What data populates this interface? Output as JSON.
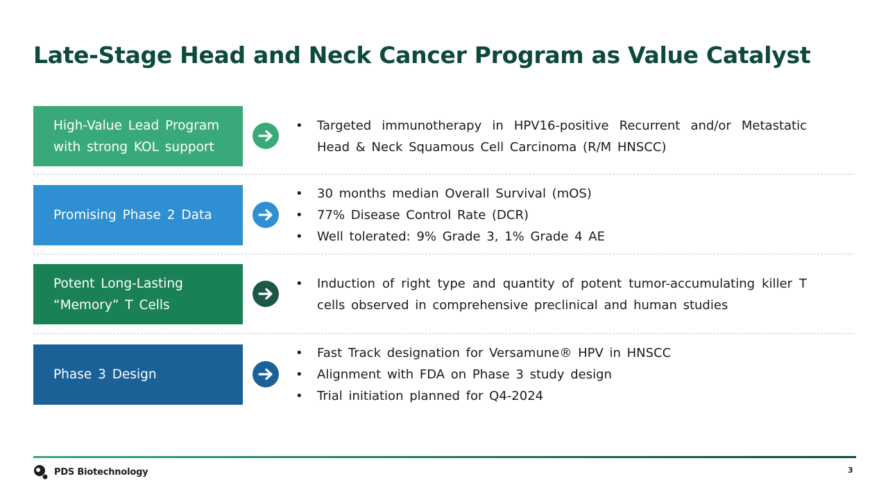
{
  "header": {
    "title": "Late-Stage Head and Neck Cancer Program as Value Catalyst"
  },
  "rows": [
    {
      "label": "High-Value Lead Program with strong KOL support",
      "bullets": [
        "Targeted immunotherapy in HPV16-positive Recurrent and/or Metastatic Head & Neck Squamous Cell Carcinoma (R/M HNSCC)"
      ]
    },
    {
      "label": "Promising Phase 2 Data",
      "bullets": [
        "30 months median Overall Survival (mOS)",
        "77% Disease Control Rate (DCR)",
        "Well tolerated: 9% Grade 3, 1% Grade 4 AE"
      ]
    },
    {
      "label": "Potent Long-Lasting “Memory” T Cells",
      "bullets": [
        "Induction of right type and quantity of potent tumor-accumulating killer T cells observed in comprehensive preclinical and human studies"
      ]
    },
    {
      "label": "Phase 3 Design",
      "bullets": [
        "Fast Track designation for Versamune® HPV in HNSCC",
        "Alignment with FDA on Phase 3 study design",
        "Trial initiation planned for Q4-2024"
      ]
    }
  ],
  "footer": {
    "company": "PDS Biotechnology",
    "page": "3"
  }
}
